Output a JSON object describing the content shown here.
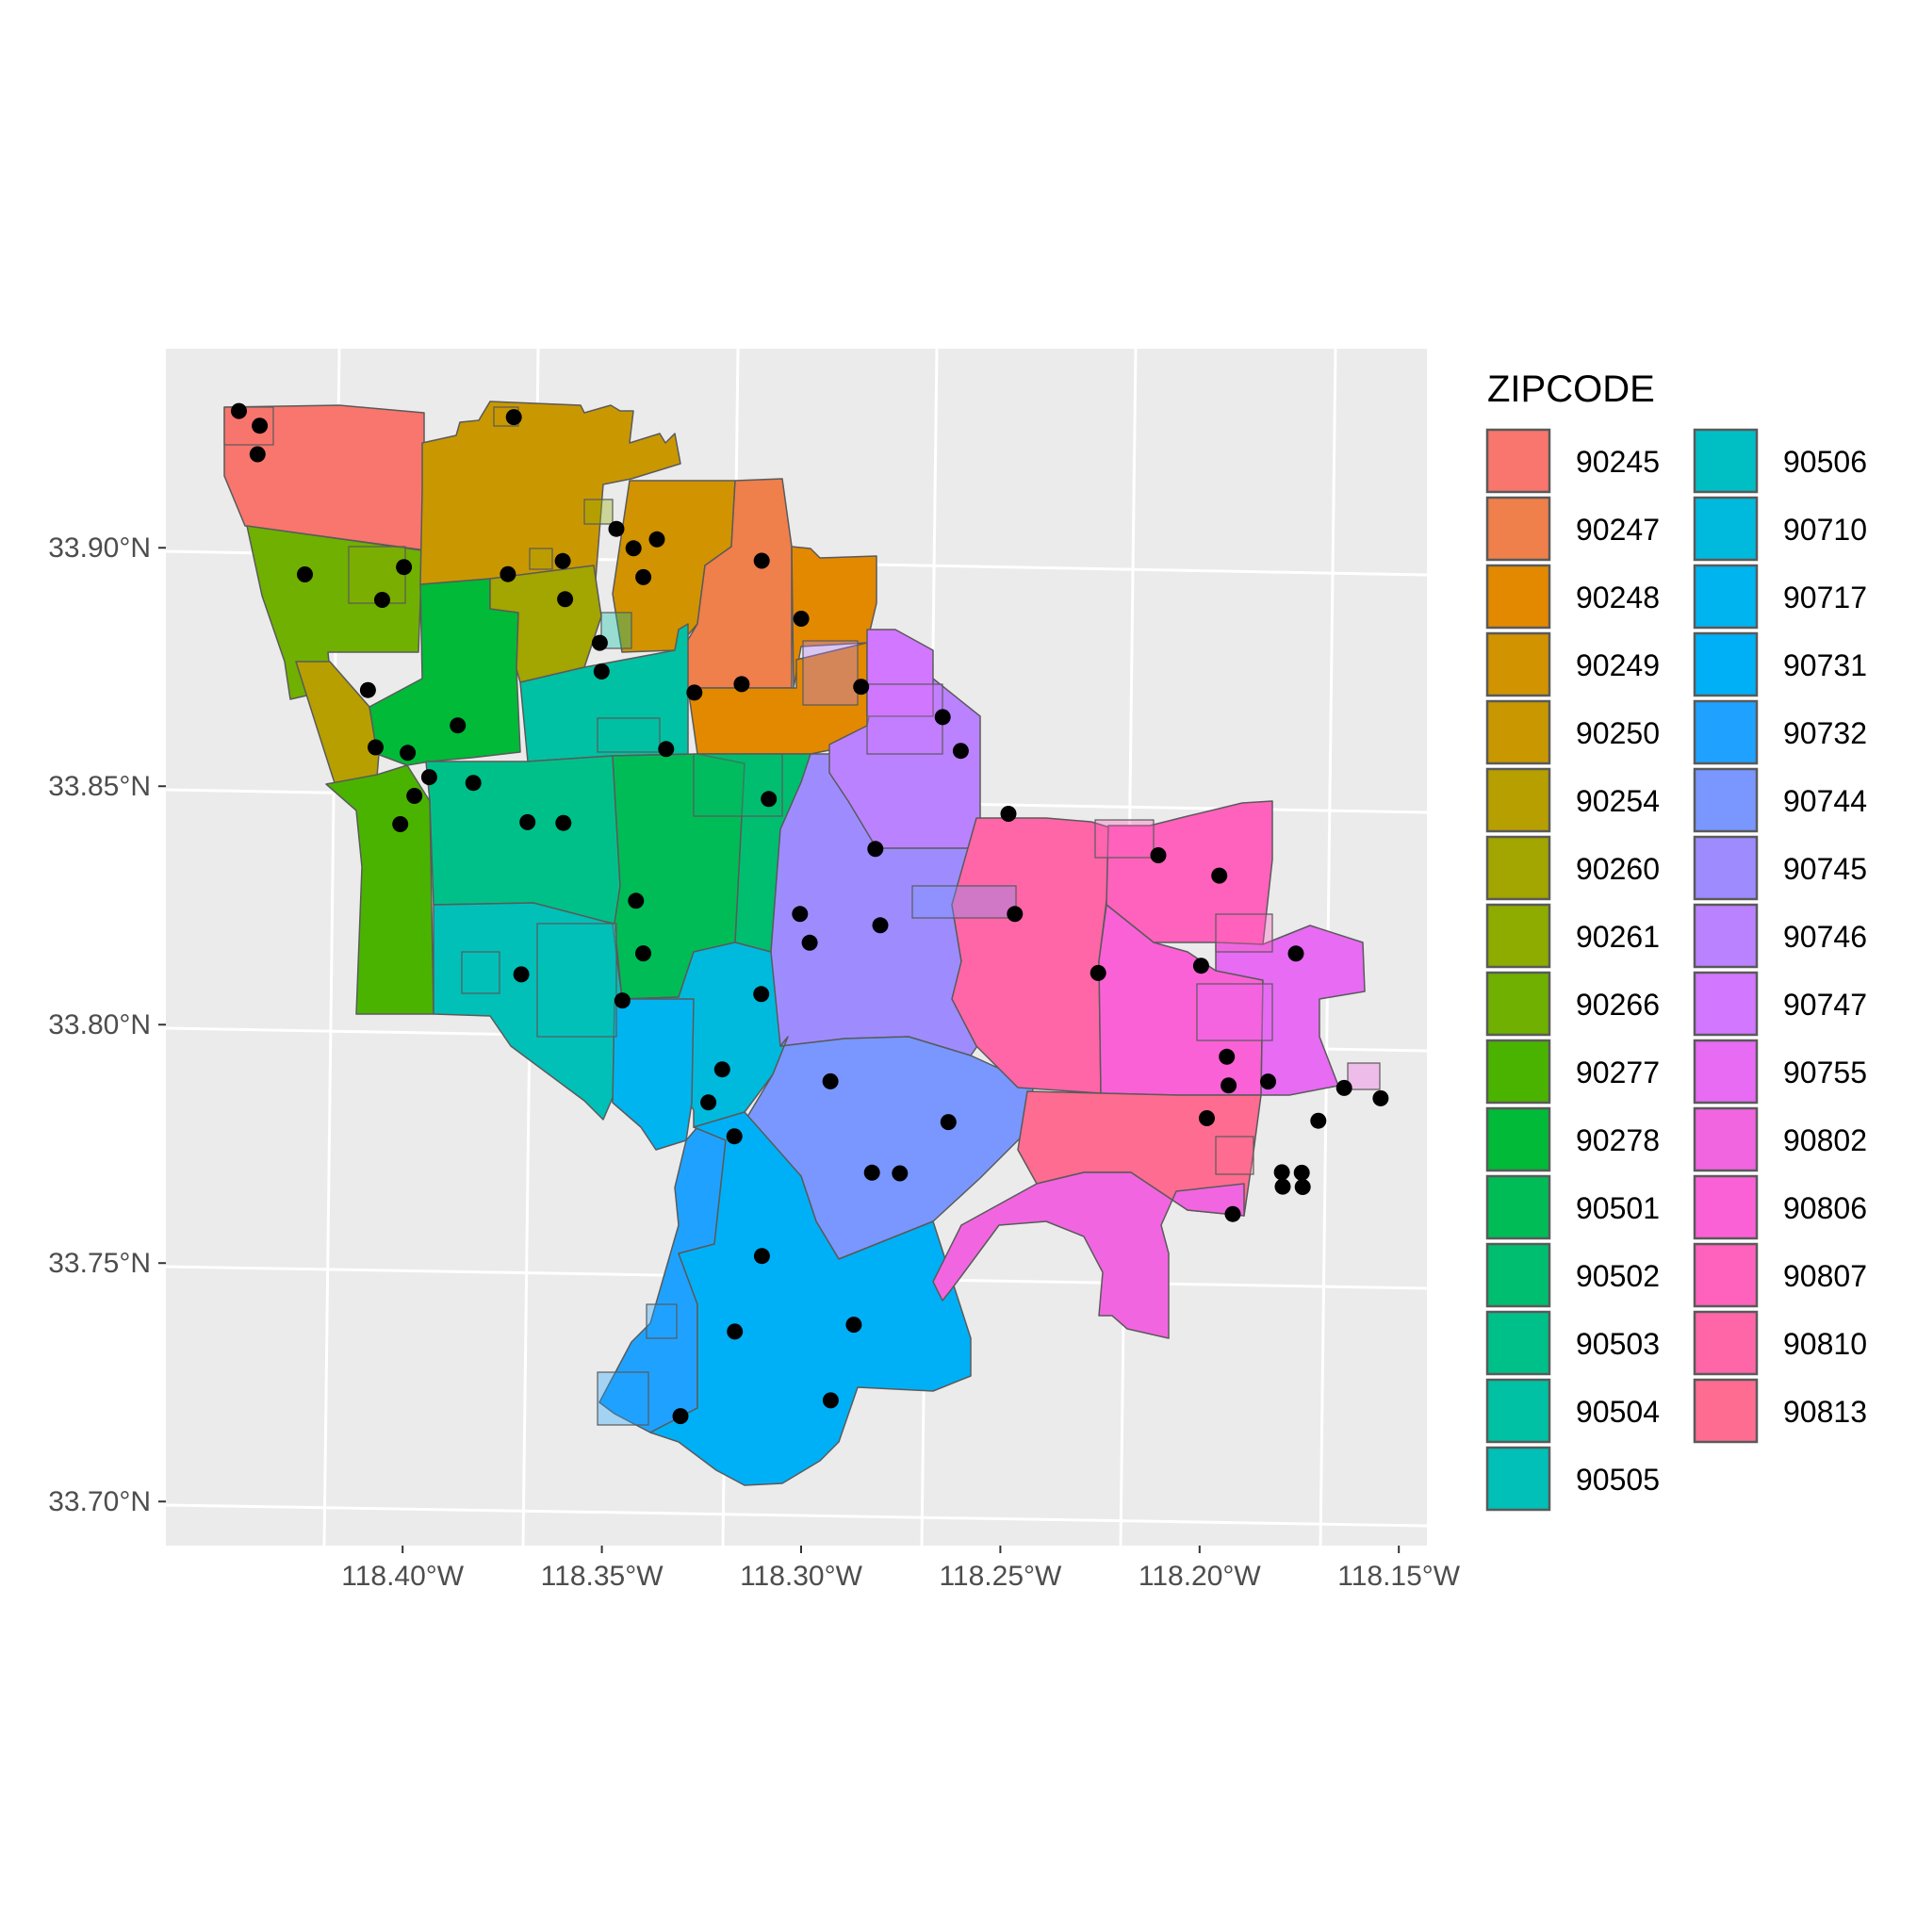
{
  "legend": {
    "title": "ZIPCODE",
    "entries": [
      {
        "label": "90245",
        "color": "#F8766D"
      },
      {
        "label": "90247",
        "color": "#EF7F4B"
      },
      {
        "label": "90248",
        "color": "#E38900"
      },
      {
        "label": "90249",
        "color": "#D19300"
      },
      {
        "label": "90250",
        "color": "#C99800"
      },
      {
        "label": "90254",
        "color": "#B79F00"
      },
      {
        "label": "90260",
        "color": "#A3A500"
      },
      {
        "label": "90261",
        "color": "#8EAB00"
      },
      {
        "label": "90266",
        "color": "#6FB000"
      },
      {
        "label": "90277",
        "color": "#4AB300"
      },
      {
        "label": "90278",
        "color": "#00BA38"
      },
      {
        "label": "90501",
        "color": "#00BC56"
      },
      {
        "label": "90502",
        "color": "#00BE70"
      },
      {
        "label": "90503",
        "color": "#00C089"
      },
      {
        "label": "90504",
        "color": "#00C1A3"
      },
      {
        "label": "90505",
        "color": "#00C0B8"
      },
      {
        "label": "90506",
        "color": "#00BFC4"
      },
      {
        "label": "90710",
        "color": "#00BADE"
      },
      {
        "label": "90717",
        "color": "#00B4EF"
      },
      {
        "label": "90731",
        "color": "#00B0F6"
      },
      {
        "label": "90732",
        "color": "#1FA2FF"
      },
      {
        "label": "90744",
        "color": "#7997FF"
      },
      {
        "label": "90745",
        "color": "#9E8CFF"
      },
      {
        "label": "90746",
        "color": "#BB82FF"
      },
      {
        "label": "90747",
        "color": "#D277FF"
      },
      {
        "label": "90755",
        "color": "#E76BF3"
      },
      {
        "label": "90802",
        "color": "#F265E1"
      },
      {
        "label": "90806",
        "color": "#FB61D7"
      },
      {
        "label": "90807",
        "color": "#FF62BC"
      },
      {
        "label": "90810",
        "color": "#FF66A8"
      },
      {
        "label": "90813",
        "color": "#FF6C91"
      }
    ]
  },
  "axes": {
    "x_ticks": [
      {
        "value": -118.4,
        "label": "118.40°W"
      },
      {
        "value": -118.35,
        "label": "118.35°W"
      },
      {
        "value": -118.3,
        "label": "118.30°W"
      },
      {
        "value": -118.25,
        "label": "118.25°W"
      },
      {
        "value": -118.2,
        "label": "118.20°W"
      },
      {
        "value": -118.15,
        "label": "118.15°W"
      }
    ],
    "y_ticks": [
      {
        "value": 33.7,
        "label": "33.70°N"
      },
      {
        "value": 33.75,
        "label": "33.75°N"
      },
      {
        "value": 33.8,
        "label": "33.80°N"
      },
      {
        "value": 33.85,
        "label": "33.85°N"
      },
      {
        "value": 33.9,
        "label": "33.90°N"
      }
    ],
    "xlim": [
      -118.44,
      -118.125
    ],
    "ylim": [
      33.69,
      33.95
    ]
  },
  "colors": {
    "panel_background": "#EBEBEB",
    "gridline": "#FFFFFF",
    "boundary": "#5A5A5A",
    "point": "#000000"
  },
  "chart_data": {
    "type": "scatter",
    "geometry": "zip code polygons filled by ZIPCODE with point locations overlaid",
    "points": [
      {
        "lon": -118.423,
        "lat": 33.929
      },
      {
        "lon": -118.418,
        "lat": 33.926
      },
      {
        "lon": -118.419,
        "lat": 33.92
      },
      {
        "lon": -118.409,
        "lat": 33.895
      },
      {
        "lon": -118.384,
        "lat": 33.897
      },
      {
        "lon": -118.39,
        "lat": 33.89
      },
      {
        "lon": -118.354,
        "lat": 33.929
      },
      {
        "lon": -118.33,
        "lat": 33.906
      },
      {
        "lon": -118.326,
        "lat": 33.902
      },
      {
        "lon": -118.32,
        "lat": 33.904
      },
      {
        "lon": -118.344,
        "lat": 33.899
      },
      {
        "lon": -118.358,
        "lat": 33.896
      },
      {
        "lon": -118.324,
        "lat": 33.896
      },
      {
        "lon": -118.344,
        "lat": 33.891
      },
      {
        "lon": -118.294,
        "lat": 33.9
      },
      {
        "lon": -118.285,
        "lat": 33.888
      },
      {
        "lon": -118.336,
        "lat": 33.882
      },
      {
        "lon": -118.336,
        "lat": 33.876
      },
      {
        "lon": -118.313,
        "lat": 33.872
      },
      {
        "lon": -118.301,
        "lat": 33.874
      },
      {
        "lon": -118.271,
        "lat": 33.874
      },
      {
        "lon": -118.395,
        "lat": 33.871
      },
      {
        "lon": -118.373,
        "lat": 33.864
      },
      {
        "lon": -118.251,
        "lat": 33.868
      },
      {
        "lon": -118.247,
        "lat": 33.861
      },
      {
        "lon": -118.394,
        "lat": 33.859
      },
      {
        "lon": -118.386,
        "lat": 33.858
      },
      {
        "lon": -118.321,
        "lat": 33.86
      },
      {
        "lon": -118.381,
        "lat": 33.853
      },
      {
        "lon": -118.385,
        "lat": 33.849
      },
      {
        "lon": -118.37,
        "lat": 33.852
      },
      {
        "lon": -118.296,
        "lat": 33.85
      },
      {
        "lon": -118.236,
        "lat": 33.848
      },
      {
        "lon": -118.357,
        "lat": 33.844
      },
      {
        "lon": -118.348,
        "lat": 33.844
      },
      {
        "lon": -118.389,
        "lat": 33.843
      },
      {
        "lon": -118.27,
        "lat": 33.84
      },
      {
        "lon": -118.199,
        "lat": 33.84
      },
      {
        "lon": -118.184,
        "lat": 33.836
      },
      {
        "lon": -118.331,
        "lat": 33.828
      },
      {
        "lon": -118.29,
        "lat": 33.826
      },
      {
        "lon": -118.236,
        "lat": 33.827
      },
      {
        "lon": -118.27,
        "lat": 33.824
      },
      {
        "lon": -118.288,
        "lat": 33.82
      },
      {
        "lon": -118.166,
        "lat": 33.82
      },
      {
        "lon": -118.33,
        "lat": 33.817
      },
      {
        "lon": -118.216,
        "lat": 33.815
      },
      {
        "lon": -118.19,
        "lat": 33.817
      },
      {
        "lon": -118.361,
        "lat": 33.812
      },
      {
        "lon": -118.301,
        "lat": 33.809
      },
      {
        "lon": -118.336,
        "lat": 33.807
      },
      {
        "lon": -118.185,
        "lat": 33.798
      },
      {
        "lon": -118.312,
        "lat": 33.793
      },
      {
        "lon": -118.185,
        "lat": 33.792
      },
      {
        "lon": -118.175,
        "lat": 33.793
      },
      {
        "lon": -118.285,
        "lat": 33.791
      },
      {
        "lon": -118.156,
        "lat": 33.792
      },
      {
        "lon": -118.147,
        "lat": 33.79
      },
      {
        "lon": -118.316,
        "lat": 33.786
      },
      {
        "lon": -118.191,
        "lat": 33.785
      },
      {
        "lon": -118.163,
        "lat": 33.785
      },
      {
        "lon": -118.256,
        "lat": 33.783
      },
      {
        "lon": -118.31,
        "lat": 33.779
      },
      {
        "lon": -118.173,
        "lat": 33.774
      },
      {
        "lon": -118.168,
        "lat": 33.774
      },
      {
        "lon": -118.276,
        "lat": 33.772
      },
      {
        "lon": -118.269,
        "lat": 33.772
      },
      {
        "lon": -118.173,
        "lat": 33.771
      },
      {
        "lon": -118.168,
        "lat": 33.771
      },
      {
        "lon": -118.186,
        "lat": 33.765
      },
      {
        "lon": -118.305,
        "lat": 33.754
      },
      {
        "lon": -118.283,
        "lat": 33.74
      },
      {
        "lon": -118.313,
        "lat": 33.738
      },
      {
        "lon": -118.29,
        "lat": 33.724
      },
      {
        "lon": -118.328,
        "lat": 33.72
      }
    ]
  }
}
